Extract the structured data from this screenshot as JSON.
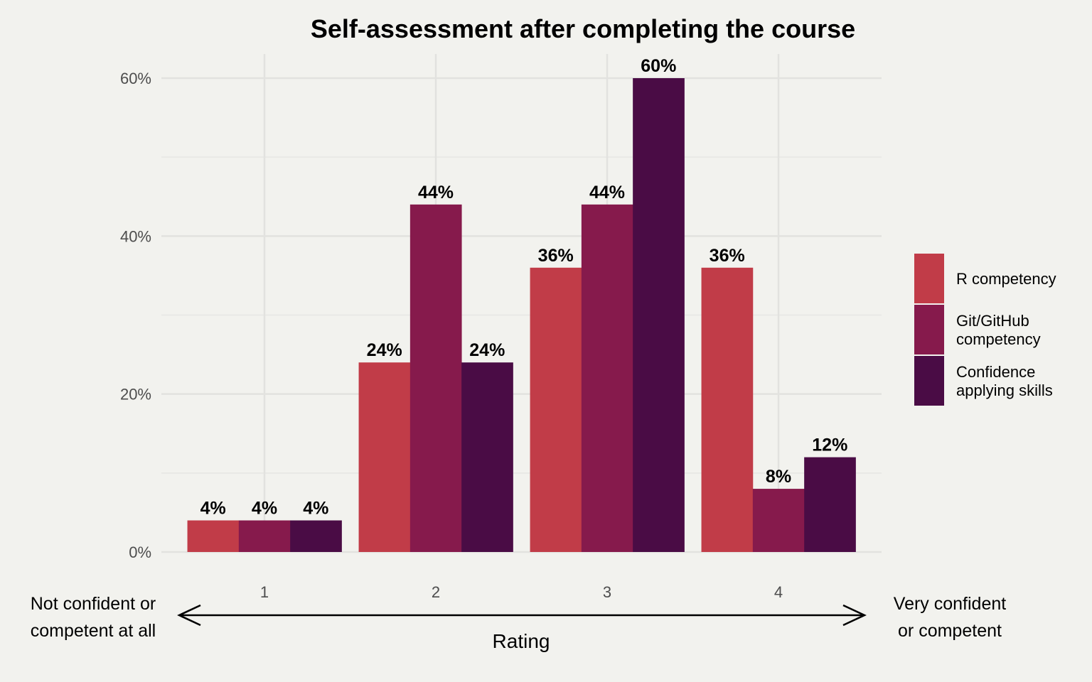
{
  "chart_data": {
    "type": "bar",
    "title": "Self-assessment after completing the course",
    "xlabel": "Rating",
    "ylabel": "",
    "categories": [
      "1",
      "2",
      "3",
      "4"
    ],
    "ylim": [
      0,
      0.6
    ],
    "yticks": [
      0,
      0.2,
      0.4,
      0.6
    ],
    "ytick_labels": [
      "0%",
      "20%",
      "40%",
      "60%"
    ],
    "grid": true,
    "legend_position": "right",
    "x_annotations": {
      "left": [
        "Not confident or",
        "competent at all"
      ],
      "right": [
        "Very confident",
        "or competent"
      ]
    },
    "series": [
      {
        "name": "R competency",
        "color": "#c13c48",
        "values": [
          0.04,
          0.24,
          0.36,
          0.36
        ],
        "labels": [
          "4%",
          "24%",
          "36%",
          "36%"
        ]
      },
      {
        "name": "Git/GitHub competency",
        "legend_lines": [
          "Git/GitHub",
          "competency"
        ],
        "color": "#861a4c",
        "values": [
          0.04,
          0.44,
          0.44,
          0.08
        ],
        "labels": [
          "4%",
          "44%",
          "44%",
          "8%"
        ]
      },
      {
        "name": "Confidence applying skills",
        "legend_lines": [
          "Confidence",
          "applying skills"
        ],
        "color": "#4a0c45",
        "values": [
          0.04,
          0.24,
          0.6,
          0.12
        ],
        "labels": [
          "4%",
          "24%",
          "60%",
          "12%"
        ]
      }
    ]
  }
}
